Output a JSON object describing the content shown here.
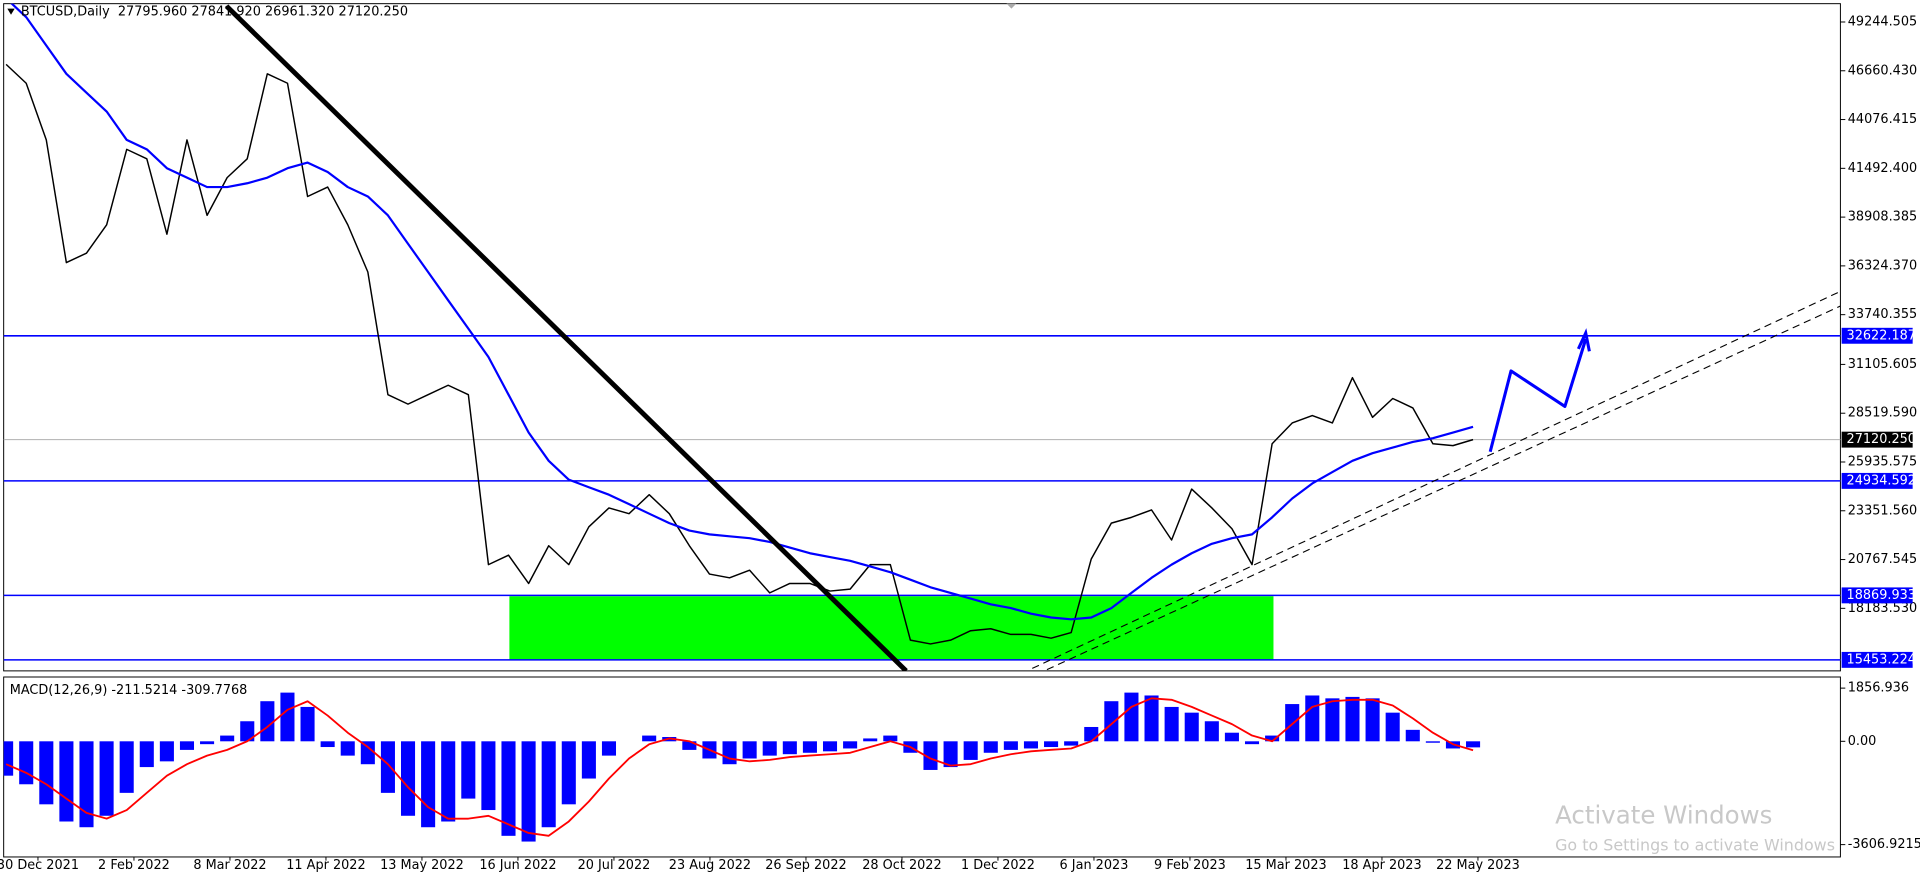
{
  "chart_data": {
    "type": "line",
    "header": "BTCUSD,Daily  27795.960 27841.920 26961.320 27120.250",
    "x_labels": [
      "30 Dec 2021",
      "2 Feb 2022",
      "8 Mar 2022",
      "11 Apr 2022",
      "13 May 2022",
      "16 Jun 2022",
      "20 Jul 2022",
      "23 Aug 2022",
      "26 Sep 2022",
      "28 Oct 2022",
      "1 Dec 2022",
      "6 Jan 2023",
      "9 Feb 2023",
      "15 Mar 2023",
      "18 Apr 2023",
      "22 May 2023"
    ],
    "ylim": [
      14870,
      50215
    ],
    "yticks": [
      {
        "value": 49244.505,
        "label": "49244.505"
      },
      {
        "value": 46660.43,
        "label": "46660.430"
      },
      {
        "value": 44076.415,
        "label": "44076.415"
      },
      {
        "value": 41492.4,
        "label": "41492.400"
      },
      {
        "value": 38908.385,
        "label": "38908.385"
      },
      {
        "value": 36324.37,
        "label": "36324.370"
      },
      {
        "value": 33740.355,
        "label": "33740.355"
      },
      {
        "value": 31105.605,
        "label": "31105.605"
      },
      {
        "value": 28519.59,
        "label": "28519.590"
      },
      {
        "value": 25935.575,
        "label": "25935.575"
      },
      {
        "value": 23351.56,
        "label": "23351.560"
      },
      {
        "value": 20767.545,
        "label": "20767.545"
      },
      {
        "value": 18183.53,
        "label": "18183.530"
      }
    ],
    "levels": [
      {
        "value": 32622.187,
        "color": "#0000ff"
      },
      {
        "value": 27120.25,
        "label": "27120.250",
        "color": "#000000"
      },
      {
        "value": 24934.592,
        "color": "#0000ff"
      },
      {
        "value": 18869.933,
        "color": "#0000ff"
      },
      {
        "value": 15453.224,
        "color": "#0000ff"
      }
    ],
    "series": [
      {
        "color": "#000000",
        "values": [
          47000,
          46000,
          43000,
          36500,
          37000,
          38500,
          42500,
          42000,
          38000,
          43000,
          39000,
          41000,
          42000,
          46500,
          46000,
          40000,
          40500,
          38500,
          36000,
          29500,
          29000,
          29500,
          30000,
          29500,
          20500,
          21000,
          19500,
          21500,
          20500,
          22500,
          23500,
          23200,
          24200,
          23200,
          21500,
          20000,
          19800,
          20200,
          19000,
          19500,
          19500,
          19100,
          19200,
          20500,
          20500,
          16500,
          16300,
          16500,
          17000,
          17100,
          16800,
          16800,
          16600,
          16900,
          20800,
          22700,
          23000,
          23400,
          21800,
          24500,
          23500,
          22400,
          20500,
          26900,
          28000,
          28400,
          28000,
          30400,
          28300,
          29300,
          28800,
          26900,
          26800,
          27120
        ]
      },
      {
        "color": "#0000ff",
        "values": [
          50500,
          49500,
          48000,
          46500,
          45500,
          44500,
          43000,
          42500,
          41500,
          41000,
          40500,
          40500,
          40700,
          41000,
          41500,
          41800,
          41300,
          40500,
          40000,
          39000,
          37500,
          36000,
          34500,
          33000,
          31500,
          29500,
          27500,
          26000,
          25000,
          24600,
          24200,
          23700,
          23200,
          22700,
          22300,
          22100,
          22000,
          21900,
          21700,
          21400,
          21100,
          20900,
          20700,
          20400,
          20100,
          19700,
          19300,
          19000,
          18700,
          18400,
          18200,
          17900,
          17700,
          17600,
          17700,
          18200,
          19000,
          19800,
          20500,
          21100,
          21600,
          21900,
          22100,
          23000,
          24000,
          24800,
          25400,
          26000,
          26400,
          26700,
          27000,
          27200,
          27500,
          27800
        ]
      }
    ],
    "macd": {
      "label": "MACD(12,26,9) -211.5214 -309.7768",
      "ylim": [
        -4038,
        2245
      ],
      "yticks": [
        1856.936,
        {
          "value": 0,
          "label": "0.00"
        },
        -3606.9215
      ],
      "histogram": {
        "color": "#0000ff",
        "values": [
          -1200,
          -1500,
          -2200,
          -2800,
          -3000,
          -2600,
          -1800,
          -900,
          -700,
          -300,
          -100,
          200,
          700,
          1400,
          1700,
          1200,
          -200,
          -500,
          -800,
          -1800,
          -2600,
          -3000,
          -2800,
          -2000,
          -2400,
          -3300,
          -3500,
          -3000,
          -2200,
          -1300,
          -500,
          0,
          200,
          150,
          -300,
          -600,
          -800,
          -600,
          -500,
          -450,
          -400,
          -350,
          -250,
          100,
          200,
          -400,
          -1000,
          -900,
          -650,
          -400,
          -300,
          -250,
          -200,
          -150,
          500,
          1400,
          1700,
          1600,
          1200,
          1000,
          700,
          300,
          -100,
          200,
          1300,
          1600,
          1500,
          1550,
          1500,
          1000,
          400,
          -50,
          -250,
          -212
        ]
      },
      "signal": {
        "color": "#ff0000",
        "values": [
          -800,
          -1100,
          -1500,
          -2000,
          -2500,
          -2700,
          -2400,
          -1800,
          -1200,
          -800,
          -500,
          -300,
          0,
          500,
          1100,
          1400,
          900,
          300,
          -200,
          -800,
          -1600,
          -2300,
          -2700,
          -2700,
          -2600,
          -2900,
          -3200,
          -3300,
          -2800,
          -2100,
          -1300,
          -600,
          -100,
          100,
          0,
          -300,
          -600,
          -700,
          -650,
          -550,
          -500,
          -450,
          -400,
          -200,
          0,
          -200,
          -600,
          -850,
          -800,
          -600,
          -450,
          -350,
          -300,
          -250,
          0,
          600,
          1200,
          1500,
          1450,
          1200,
          900,
          600,
          200,
          0,
          600,
          1200,
          1400,
          1450,
          1450,
          1250,
          800,
          300,
          -100,
          -310
        ]
      }
    }
  },
  "watermark": {
    "title": "Activate Windows",
    "subtitle": "Go to Settings to activate Windows"
  }
}
